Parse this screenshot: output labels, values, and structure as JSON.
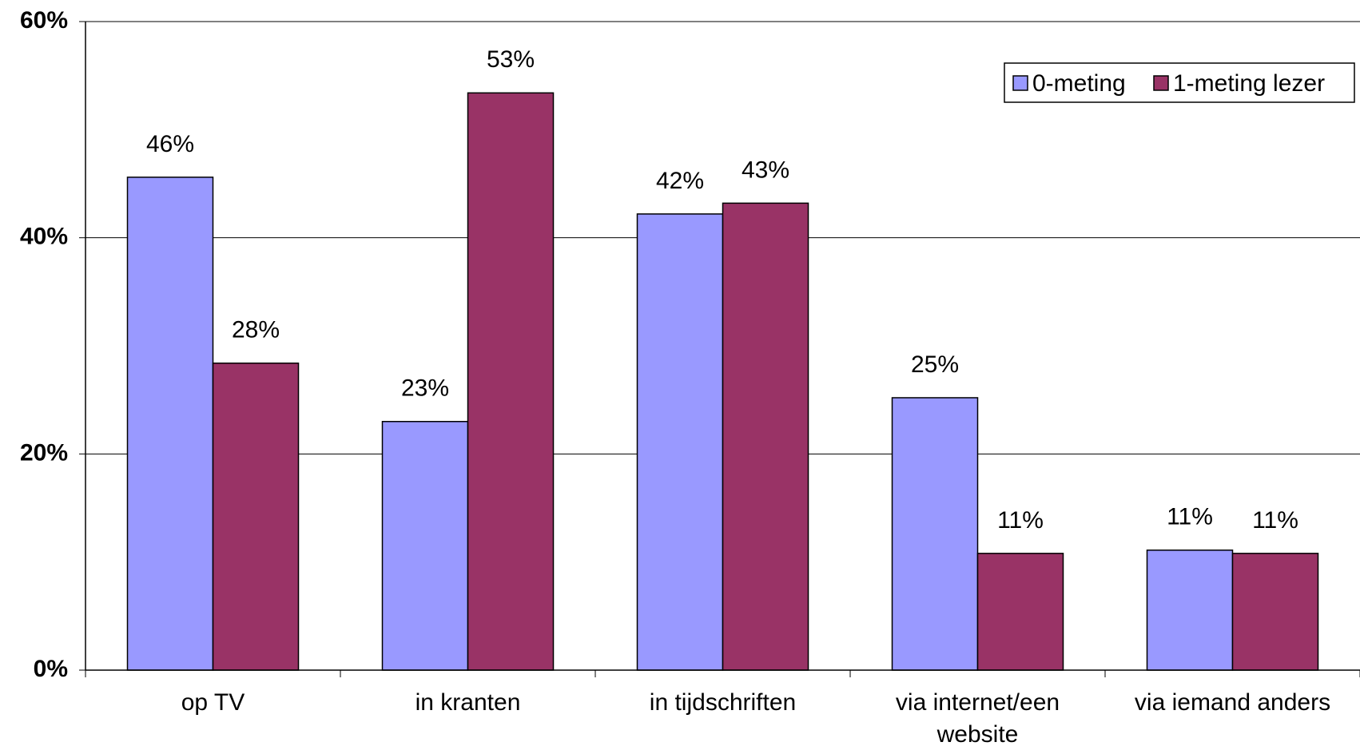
{
  "chart_data": {
    "type": "bar",
    "categories": [
      "op TV",
      "in kranten",
      "in tijdschriften",
      "via internet/een website",
      "via iemand anders"
    ],
    "series": [
      {
        "name": "0-meting",
        "color": "#9999ff",
        "values": [
          45.6,
          23.0,
          42.2,
          25.2,
          11.1
        ],
        "value_labels": [
          "46%",
          "23%",
          "42%",
          "25%",
          "11%"
        ]
      },
      {
        "name": "1-meting lezer",
        "color": "#993366",
        "values": [
          28.4,
          53.4,
          43.2,
          10.8,
          10.8
        ],
        "value_labels": [
          "28%",
          "53%",
          "43%",
          "11%",
          "11%"
        ]
      }
    ],
    "ylim": [
      0,
      60
    ],
    "yticks": [
      {
        "value": 0,
        "label": "0%"
      },
      {
        "value": 20,
        "label": "20%"
      },
      {
        "value": 40,
        "label": "40%"
      },
      {
        "value": 60,
        "label": "60%"
      }
    ],
    "grid": true,
    "legend": "top-right"
  }
}
